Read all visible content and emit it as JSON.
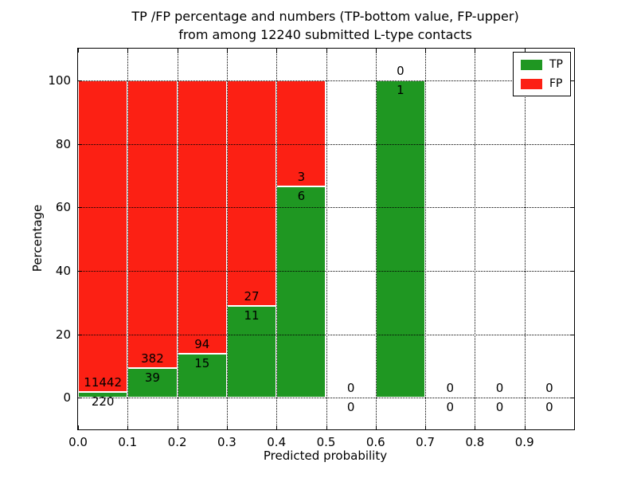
{
  "chart_data": {
    "type": "bar",
    "stacked": true,
    "title_lines": [
      "TP /FP percentage and numbers (TP-bottom value, FP-upper)",
      "from among 12240 submitted L-type contacts"
    ],
    "xlabel": "Predicted probability",
    "ylabel": "Percentage",
    "xlim": [
      0.0,
      1.0
    ],
    "ylim": [
      -10,
      110
    ],
    "xticks": {
      "values": [
        0.0,
        0.1,
        0.2,
        0.3,
        0.4,
        0.5,
        0.6,
        0.7,
        0.8,
        0.9
      ],
      "labels": [
        "0.0",
        "0.1",
        "0.2",
        "0.3",
        "0.4",
        "0.5",
        "0.6",
        "0.7",
        "0.8",
        "0.9"
      ]
    },
    "yticks": {
      "values": [
        0,
        20,
        40,
        60,
        80,
        100
      ],
      "labels": [
        "0",
        "20",
        "40",
        "60",
        "80",
        "100"
      ]
    },
    "grid": "dotted",
    "legend_position": "upper right",
    "legend": [
      {
        "label": "TP",
        "color": "#1f9722"
      },
      {
        "label": "FP",
        "color": "#fc2014"
      }
    ],
    "colors": {
      "tp": "#1f9722",
      "fp": "#fc2014",
      "bar_edge": "#ffffff"
    },
    "bin_width": 0.1,
    "bins": [
      {
        "range": [
          0.0,
          0.1
        ],
        "tp": 220,
        "fp": 11442
      },
      {
        "range": [
          0.1,
          0.2
        ],
        "tp": 39,
        "fp": 382
      },
      {
        "range": [
          0.2,
          0.3
        ],
        "tp": 15,
        "fp": 94
      },
      {
        "range": [
          0.3,
          0.4
        ],
        "tp": 11,
        "fp": 27
      },
      {
        "range": [
          0.4,
          0.5
        ],
        "tp": 6,
        "fp": 3
      },
      {
        "range": [
          0.5,
          0.6
        ],
        "tp": 0,
        "fp": 0
      },
      {
        "range": [
          0.6,
          0.7
        ],
        "tp": 1,
        "fp": 0
      },
      {
        "range": [
          0.7,
          0.8
        ],
        "tp": 0,
        "fp": 0
      },
      {
        "range": [
          0.8,
          0.9
        ],
        "tp": 0,
        "fp": 0
      },
      {
        "range": [
          0.9,
          1.0
        ],
        "tp": 0,
        "fp": 0
      }
    ]
  }
}
